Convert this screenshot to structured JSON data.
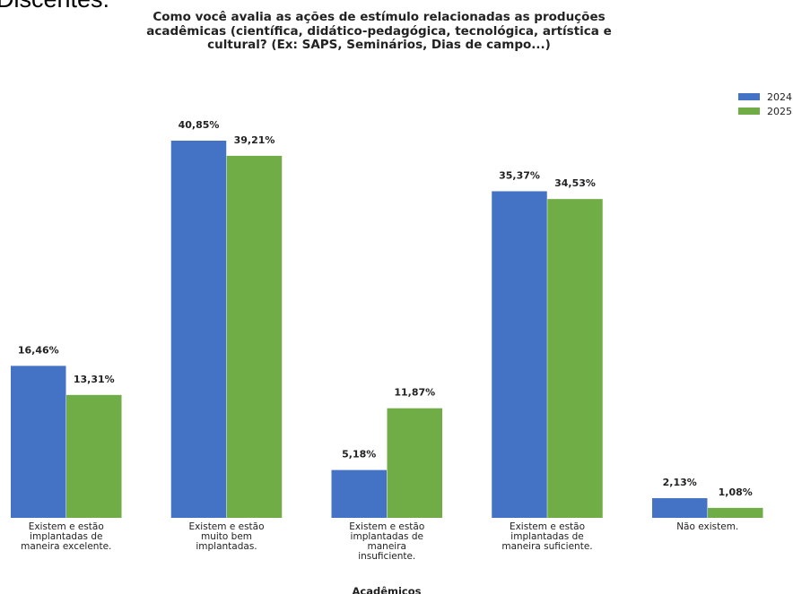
{
  "header_text": "Discentes:",
  "chart_data": {
    "type": "bar",
    "title": "Como você avalia as ações de estímulo relacionadas as produções acadêmicas (científica, didático-pedagógica, tecnológica, artística e cultural? (Ex: SAPS, Seminários, Dias de campo...)",
    "xlabel": "Acadêmicos",
    "ylabel": "",
    "legend_position": "top-right",
    "grid": false,
    "ylim": [
      0,
      45
    ],
    "categories": [
      "Existem e estão implantadas de maneira excelente.",
      "Existem e estão muito bem implantadas.",
      "Existem e estão implantadas de maneira insuficiente.",
      "Existem e estão implantadas de maneira suficiente.",
      "Não existem."
    ],
    "category_lines": [
      [
        "Existem e estão",
        "implantadas de",
        "maneira excelente."
      ],
      [
        "Existem e estão",
        "muito bem",
        "implantadas."
      ],
      [
        "Existem e estão",
        "implantadas de",
        "maneira",
        "insuficiente."
      ],
      [
        "Existem e estão",
        "implantadas de",
        "maneira suficiente."
      ],
      [
        "Não existem."
      ]
    ],
    "series": [
      {
        "name": "2024",
        "color": "#4472c4",
        "values": [
          16.46,
          40.85,
          5.18,
          35.37,
          2.13
        ],
        "labels": [
          "16,46%",
          "40,85%",
          "5,18%",
          "35,37%",
          "2,13%"
        ]
      },
      {
        "name": "2025",
        "color": "#70ad47",
        "values": [
          13.31,
          39.21,
          11.87,
          34.53,
          1.08
        ],
        "labels": [
          "13,31%",
          "39,21%",
          "11,87%",
          "34,53%",
          "1,08%"
        ]
      }
    ]
  }
}
